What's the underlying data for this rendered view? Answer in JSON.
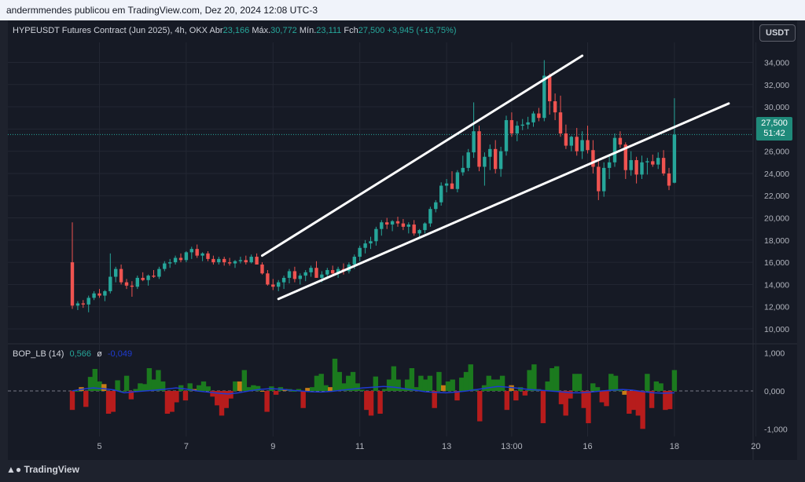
{
  "header": {
    "text": "andermmendes publicou em TradingView.com, Dez 20, 2024 12:08 UTC-3"
  },
  "legend": {
    "symbol": "HYPEUSDT Futures Contract (Jun 2025), 4h, OKX",
    "open_label": "Abr",
    "open_value": "23,166",
    "high_label": "Máx.",
    "high_value": "30,772",
    "low_label": "Mín.",
    "low_value": "23,111",
    "close_label": "Fch",
    "close_value": "27,500",
    "change": "+3,945 (+16,75%)"
  },
  "currency_button": "USDT",
  "price_tag": {
    "price": "27,500",
    "countdown": "51:42"
  },
  "bop": {
    "name": "BOP_LB (14)",
    "value1": "0,566",
    "symbol": "ø",
    "value2": "-0,049"
  },
  "footer": {
    "brand": "TradingView"
  },
  "colors": {
    "up": "#26a69a",
    "down": "#ef5350",
    "bg": "#161a25",
    "grid": "#232733",
    "bop_green": "#1b7a1e",
    "bop_red": "#b71c1c",
    "bop_orange": "#c77c16",
    "signal": "#1f3bd1"
  },
  "chart_data": [
    {
      "type": "candlestick",
      "title": "HYPEUSDT Futures Contract (Jun 2025), 4h, OKX",
      "x_ticks": [
        "5",
        "7",
        "9",
        "11",
        "13",
        "13:00",
        "16",
        "18",
        "20"
      ],
      "y_ticks": [
        "10,000",
        "12,000",
        "14,000",
        "16,000",
        "18,000",
        "20,000",
        "22,000",
        "24,000",
        "26,000",
        "28,000",
        "30,000",
        "32,000",
        "34,000"
      ],
      "ylim": [
        8800,
        35800
      ],
      "last_price": 27.5,
      "candles": [
        [
          16.0,
          19.6,
          11.8,
          12.1
        ],
        [
          12.1,
          12.5,
          11.7,
          12.3
        ],
        [
          12.3,
          12.6,
          11.9,
          12.2
        ],
        [
          12.2,
          13.0,
          11.5,
          12.8
        ],
        [
          12.8,
          13.4,
          12.6,
          13.2
        ],
        [
          13.2,
          13.6,
          12.8,
          13.0
        ],
        [
          13.0,
          13.5,
          12.5,
          13.4
        ],
        [
          13.4,
          16.8,
          13.2,
          14.7
        ],
        [
          14.7,
          15.6,
          14.2,
          15.4
        ],
        [
          15.4,
          15.8,
          14.0,
          14.2
        ],
        [
          14.2,
          14.5,
          13.6,
          13.9
        ],
        [
          13.9,
          14.3,
          12.9,
          13.8
        ],
        [
          13.8,
          14.8,
          13.6,
          14.6
        ],
        [
          14.6,
          15.1,
          14.3,
          14.4
        ],
        [
          14.4,
          14.9,
          13.9,
          14.8
        ],
        [
          14.8,
          15.3,
          14.6,
          14.7
        ],
        [
          14.7,
          15.6,
          14.5,
          15.4
        ],
        [
          15.4,
          16.1,
          15.2,
          15.9
        ],
        [
          15.9,
          16.3,
          15.5,
          16.0
        ],
        [
          16.0,
          16.6,
          15.8,
          16.4
        ],
        [
          16.4,
          16.8,
          16.0,
          16.2
        ],
        [
          16.2,
          17.0,
          16.0,
          16.9
        ],
        [
          16.9,
          17.4,
          16.3,
          17.2
        ],
        [
          17.2,
          17.6,
          16.4,
          16.6
        ],
        [
          16.6,
          16.9,
          16.1,
          16.8
        ],
        [
          16.8,
          17.0,
          16.1,
          16.3
        ],
        [
          16.3,
          16.6,
          15.8,
          16.0
        ],
        [
          16.0,
          16.5,
          15.8,
          16.3
        ],
        [
          16.3,
          16.5,
          15.7,
          16.0
        ],
        [
          16.0,
          16.4,
          15.7,
          15.9
        ],
        [
          15.9,
          16.2,
          15.5,
          16.1
        ],
        [
          16.1,
          16.5,
          15.9,
          16.2
        ],
        [
          16.2,
          16.6,
          15.8,
          16.0
        ],
        [
          16.0,
          16.7,
          15.9,
          16.5
        ],
        [
          16.5,
          16.8,
          15.9,
          15.8
        ],
        [
          15.8,
          16.0,
          14.9,
          15.0
        ],
        [
          15.0,
          15.3,
          13.9,
          14.0
        ],
        [
          14.0,
          14.5,
          13.5,
          13.8
        ],
        [
          13.8,
          14.4,
          13.4,
          14.2
        ],
        [
          14.2,
          14.8,
          13.6,
          14.6
        ],
        [
          14.6,
          15.4,
          14.1,
          15.2
        ],
        [
          15.2,
          15.6,
          14.2,
          14.5
        ],
        [
          14.5,
          15.0,
          14.0,
          14.8
        ],
        [
          14.8,
          15.3,
          14.3,
          15.1
        ],
        [
          15.1,
          15.7,
          14.7,
          15.5
        ],
        [
          15.5,
          16.1,
          14.6,
          14.6
        ],
        [
          14.6,
          15.2,
          14.2,
          14.9
        ],
        [
          14.9,
          15.5,
          14.5,
          15.3
        ],
        [
          15.3,
          15.7,
          14.8,
          15.0
        ],
        [
          15.0,
          15.6,
          14.6,
          15.4
        ],
        [
          15.4,
          15.9,
          14.9,
          15.2
        ],
        [
          15.2,
          16.0,
          15.0,
          15.8
        ],
        [
          15.8,
          16.7,
          15.4,
          16.5
        ],
        [
          16.5,
          17.5,
          16.1,
          17.3
        ],
        [
          17.3,
          18.0,
          16.8,
          17.7
        ],
        [
          17.7,
          18.3,
          17.2,
          17.9
        ],
        [
          17.9,
          19.2,
          17.5,
          19.0
        ],
        [
          19.0,
          19.8,
          18.4,
          19.6
        ],
        [
          19.6,
          20.0,
          19.0,
          19.4
        ],
        [
          19.4,
          19.8,
          18.8,
          19.7
        ],
        [
          19.7,
          20.1,
          19.2,
          19.5
        ],
        [
          19.5,
          19.9,
          18.9,
          19.2
        ],
        [
          19.2,
          19.6,
          18.6,
          19.4
        ],
        [
          19.4,
          19.8,
          18.4,
          18.6
        ],
        [
          18.6,
          19.0,
          18.2,
          18.9
        ],
        [
          18.9,
          19.6,
          18.6,
          19.5
        ],
        [
          19.5,
          21.0,
          19.2,
          20.8
        ],
        [
          20.8,
          21.6,
          20.5,
          21.4
        ],
        [
          21.4,
          23.2,
          21.1,
          22.9
        ],
        [
          22.9,
          23.5,
          22.3,
          23.1
        ],
        [
          23.1,
          24.2,
          22.7,
          22.6
        ],
        [
          22.6,
          24.3,
          22.3,
          24.1
        ],
        [
          24.1,
          25.6,
          23.8,
          24.5
        ],
        [
          24.5,
          26.2,
          24.2,
          25.9
        ],
        [
          25.9,
          30.4,
          25.4,
          27.8
        ],
        [
          27.8,
          28.3,
          24.2,
          24.6
        ],
        [
          24.6,
          25.9,
          22.9,
          25.5
        ],
        [
          25.5,
          26.6,
          24.3,
          26.2
        ],
        [
          26.2,
          27.0,
          24.0,
          24.4
        ],
        [
          24.4,
          26.4,
          23.7,
          26.0
        ],
        [
          26.0,
          29.2,
          25.6,
          28.8
        ],
        [
          28.8,
          29.5,
          27.3,
          27.6
        ],
        [
          27.6,
          28.7,
          26.9,
          28.3
        ],
        [
          28.3,
          28.9,
          27.9,
          28.4
        ],
        [
          28.4,
          29.1,
          28.0,
          28.6
        ],
        [
          28.6,
          29.6,
          28.2,
          29.4
        ],
        [
          29.4,
          29.9,
          28.7,
          29.0
        ],
        [
          29.0,
          34.2,
          28.7,
          32.8
        ],
        [
          32.8,
          33.0,
          29.3,
          30.5
        ],
        [
          30.5,
          31.2,
          28.8,
          29.5
        ],
        [
          29.5,
          31.0,
          27.3,
          27.6
        ],
        [
          27.6,
          28.4,
          26.2,
          26.5
        ],
        [
          26.5,
          27.4,
          26.0,
          27.3
        ],
        [
          27.3,
          28.1,
          25.6,
          26.0
        ],
        [
          26.0,
          27.8,
          25.3,
          27.0
        ],
        [
          27.0,
          28.3,
          25.8,
          26.1
        ],
        [
          26.1,
          27.0,
          24.0,
          24.6
        ],
        [
          24.6,
          25.3,
          21.6,
          22.4
        ],
        [
          22.4,
          25.0,
          21.9,
          24.5
        ],
        [
          24.5,
          25.6,
          23.5,
          25.0
        ],
        [
          25.0,
          27.6,
          24.6,
          27.2
        ],
        [
          27.2,
          27.8,
          26.3,
          26.6
        ],
        [
          26.6,
          26.8,
          23.5,
          24.3
        ],
        [
          24.3,
          26.0,
          23.8,
          25.2
        ],
        [
          25.2,
          25.5,
          23.1,
          23.9
        ],
        [
          23.9,
          25.6,
          23.5,
          25.0
        ],
        [
          25.0,
          25.4,
          23.9,
          25.1
        ],
        [
          25.1,
          25.7,
          24.6,
          24.8
        ],
        [
          24.8,
          25.9,
          24.4,
          25.4
        ],
        [
          25.4,
          26.1,
          23.8,
          24.0
        ],
        [
          24.0,
          24.5,
          22.5,
          22.9
        ],
        [
          23.166,
          30.772,
          23.111,
          27.5
        ]
      ],
      "trendlines": [
        {
          "from": [
            35,
            16.6
          ],
          "to": [
            94,
            34.6
          ]
        },
        {
          "from": [
            38,
            12.7
          ],
          "to": [
            121,
            30.3
          ]
        }
      ]
    },
    {
      "type": "bar",
      "title": "BOP_LB (14)",
      "y_ticks": [
        "1,000",
        "0,000",
        "-1,000"
      ],
      "ylim": [
        -1.2,
        1.2
      ],
      "series": [
        {
          "name": "BOP",
          "values": [
            -0.5,
            0.0,
            0.1,
            -0.42,
            0.37,
            0.58,
            0.25,
            0.18,
            -0.6,
            -0.55,
            0.28,
            0.0,
            0.4,
            -0.22,
            0.05,
            0.2,
            0.18,
            0.6,
            0.3,
            0.55,
            0.25,
            -0.6,
            -0.55,
            -0.3,
            0.15,
            -0.25,
            0.2,
            0.05,
            0.15,
            0.25,
            0.12,
            -0.15,
            -0.38,
            -0.65,
            -0.45,
            -0.2,
            0.25,
            0.25,
            0.55,
            0.1,
            0.15,
            0.13,
            0.0,
            -0.55,
            0.12,
            -0.1,
            0.1,
            0.05,
            0.05,
            0.0,
            0.05,
            -0.45,
            0.08,
            0.1,
            0.4,
            0.45,
            0.15,
            0.1,
            0.85,
            0.5,
            0.2,
            0.4,
            0.5,
            0.2,
            0.03,
            -0.5,
            -0.65,
            0.38,
            -0.6,
            0.05,
            0.3,
            0.65,
            0.3,
            0.05,
            0.3,
            0.6,
            0.1,
            0.4,
            0.3,
            0.4,
            -0.45,
            0.5,
            0.15,
            0.25,
            0.3,
            -0.25,
            0.35,
            0.5,
            0.7,
            0.05,
            -0.8,
            0.15,
            0.4,
            0.3,
            0.3,
            0.4,
            -0.5,
            0.15,
            -0.25,
            0.1,
            -0.12,
            0.55,
            0.7,
            0.05,
            -0.85,
            0.25,
            0.6,
            0.65,
            -0.35,
            -0.65,
            -0.2,
            0.45,
            0.45,
            -0.45,
            -0.85,
            0.2,
            0.1,
            -0.3,
            -0.4,
            0.45,
            0.4,
            0.05,
            -0.1,
            -0.6,
            -0.5,
            -0.65,
            -1.0,
            0.45,
            -0.45,
            0.25,
            0.2,
            -0.5,
            -0.48,
            0.55
          ]
        },
        {
          "name": "signal",
          "values": [
            0.0,
            0.05,
            0.08,
            0.06,
            0.03,
            -0.05,
            -0.02,
            0.0,
            0.02,
            0.05,
            0.08,
            0.05,
            0.0,
            -0.03,
            -0.06,
            -0.08,
            -0.05,
            0.0,
            0.04,
            0.06,
            0.05,
            0.02,
            0.0,
            -0.02,
            -0.03,
            -0.01,
            0.02,
            0.05,
            0.08,
            0.1,
            0.12,
            0.1,
            0.06,
            0.02,
            -0.02,
            -0.04,
            -0.05,
            -0.03,
            0.0,
            0.04,
            0.08,
            0.12,
            0.1,
            0.07,
            0.04,
            0.02,
            0.0,
            -0.02,
            -0.05,
            -0.05,
            -0.03,
            0.0,
            0.02,
            0.04,
            0.02,
            -0.02,
            -0.05,
            -0.06,
            -0.05
          ]
        }
      ]
    }
  ]
}
